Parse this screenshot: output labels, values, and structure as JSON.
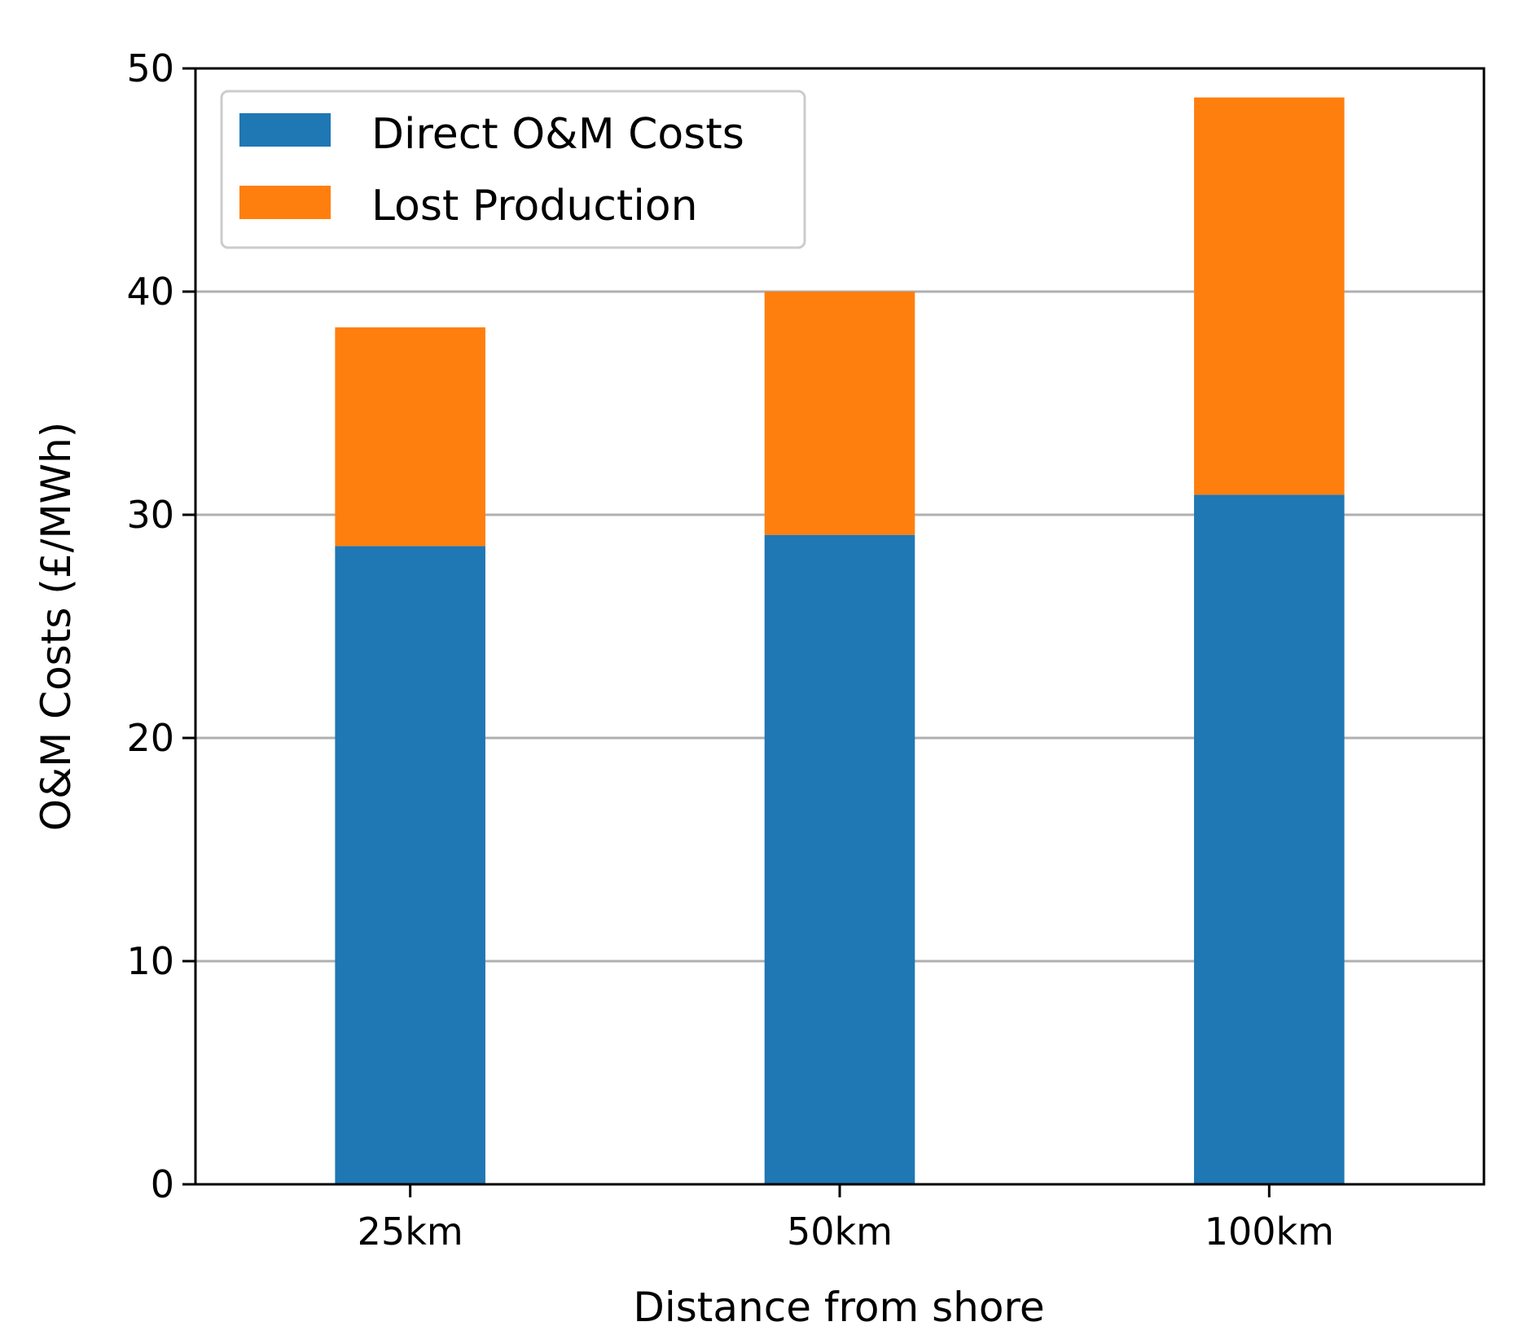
{
  "chart_data": {
    "type": "bar",
    "stacked": true,
    "title": "",
    "xlabel": "Distance from shore",
    "ylabel": "O&M Costs (£/MWh)",
    "categories": [
      "25km",
      "50km",
      "100km"
    ],
    "series": [
      {
        "name": "Direct O&M Costs",
        "values": [
          28.6,
          29.1,
          30.9
        ],
        "color": "#1f77b4"
      },
      {
        "name": "Lost Production",
        "values": [
          9.8,
          10.9,
          17.8
        ],
        "color": "#ff7f0e"
      }
    ],
    "ylim": [
      0,
      50
    ],
    "yticks": [
      "0",
      "10",
      "20",
      "30",
      "40",
      "50"
    ],
    "grid": "horizontal",
    "legend_position": "top-left"
  }
}
